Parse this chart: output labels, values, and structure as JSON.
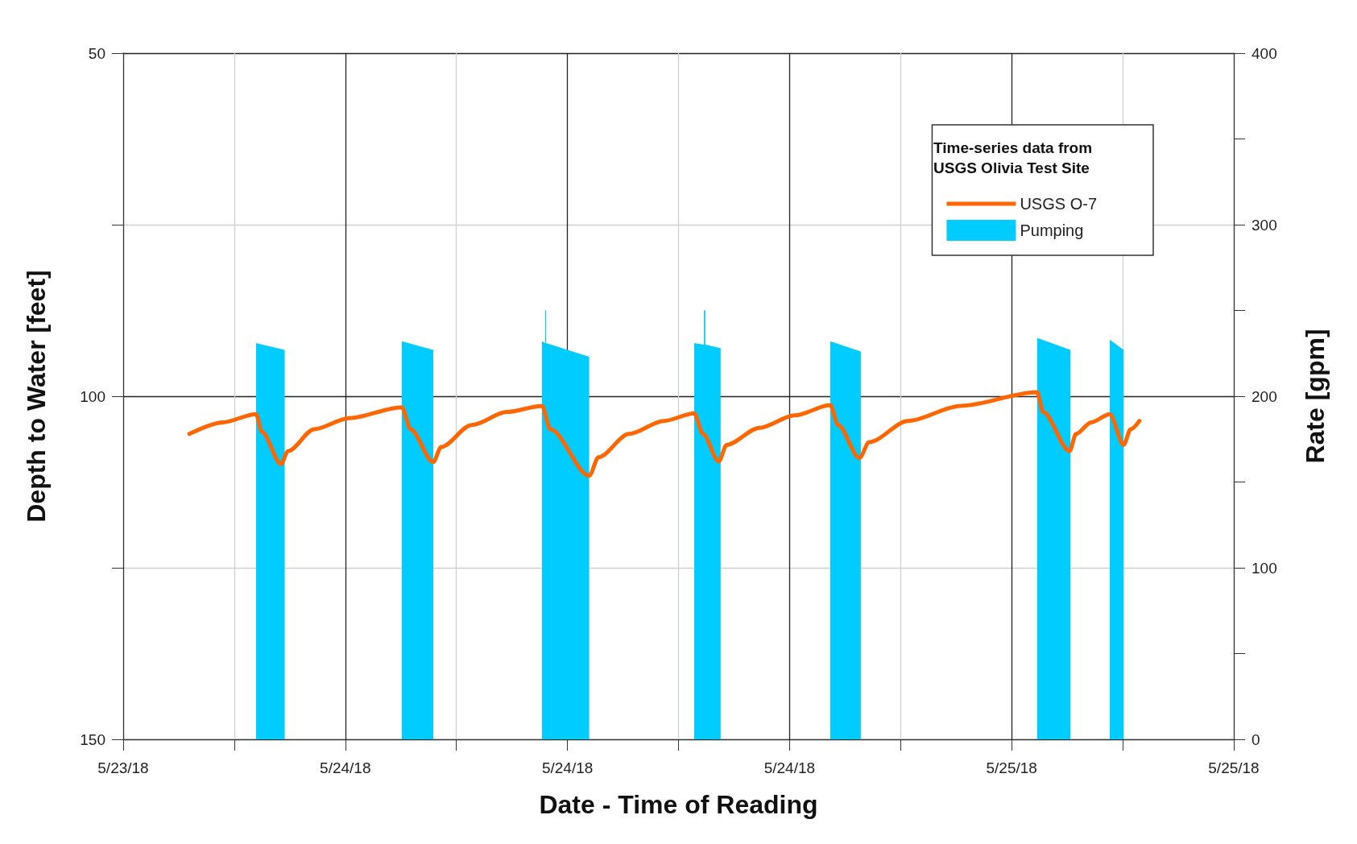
{
  "chart_data": {
    "type": "line",
    "xlabel": "Date - Time of Reading",
    "ylabel": "Depth to Water [feet]",
    "y2label": "Rate [gpm]",
    "legend_title": "Time-series data from USGS Olivia Test Site",
    "xlim": [
      "--05-23T16:00",
      "--05-25T08:00"
    ],
    "xticks": [
      {
        "value": "--05-23T16:00",
        "label": "5/23/18"
      },
      {
        "value": "--05-23T20:00",
        "label": null
      },
      {
        "value": "--05-24T00:00",
        "label": "5/24/18"
      },
      {
        "value": "--05-24T04:00",
        "label": null
      },
      {
        "value": "--05-24T08:00",
        "label": "5/24/18"
      },
      {
        "value": "--05-24T12:00",
        "label": null
      },
      {
        "value": "--05-24T16:00",
        "label": "5/24/18"
      },
      {
        "value": "--05-24T20:00",
        "label": null
      },
      {
        "value": "--05-25T00:00",
        "label": "5/25/18"
      },
      {
        "value": "--05-25T04:00",
        "label": null
      },
      {
        "value": "--05-25T08:00",
        "label": "5/25/18"
      }
    ],
    "ylim": [
      150,
      50
    ],
    "yticks": [
      50,
      {
        "value": 75,
        "label": null
      },
      100,
      {
        "value": 125,
        "label": null
      },
      150
    ],
    "y2lim": [
      0,
      400
    ],
    "y2ticks": [
      0,
      {
        "value": 50,
        "label": null
      },
      100,
      {
        "value": 150,
        "label": null
      },
      200,
      {
        "value": 250,
        "label": null
      },
      300,
      {
        "value": 350,
        "label": null
      },
      400
    ],
    "grid": true,
    "legend": "top right",
    "marker": "none",
    "line_style": "solid",
    "series": [
      {
        "name": "USGS O-7",
        "color": "#ff6600",
        "x": [
          "--05-23T18:23",
          "--05-23T19:35",
          "--05-23T20:47",
          "--05-23T21:00",
          "--05-23T21:41",
          "--05-23T21:56",
          "--05-23T22:53",
          "--05-24T00:08",
          "--05-24T02:02",
          "--05-24T02:21",
          "--05-24T03:10",
          "--05-24T03:27",
          "--05-24T04:33",
          "--05-24T05:49",
          "--05-24T07:05",
          "--05-24T07:23",
          "--05-24T08:47",
          "--05-24T09:07",
          "--05-24T10:13",
          "--05-24T11:28",
          "--05-24T12:34",
          "--05-24T12:53",
          "--05-24T13:27",
          "--05-24T13:44",
          "--05-24T14:55",
          "--05-24T16:11",
          "--05-24T17:28",
          "--05-24T17:45",
          "--05-24T18:31",
          "--05-24T18:52",
          "--05-24T20:16",
          "--05-24T22:10",
          "--05-25T00:55",
          "--05-25T01:08",
          "--05-25T02:05",
          "--05-25T02:19",
          "--05-25T02:52",
          "--05-25T03:32",
          "--05-25T04:02",
          "--05-25T04:17",
          "--05-25T04:36"
        ],
        "values": [
          105.5,
          103.8,
          102.6,
          105.2,
          109.9,
          108.0,
          104.8,
          103.2,
          101.6,
          104.8,
          109.6,
          107.4,
          104.2,
          102.3,
          101.4,
          104.8,
          111.6,
          108.9,
          105.5,
          103.6,
          102.5,
          105.5,
          109.5,
          107.1,
          104.6,
          102.8,
          101.3,
          104.2,
          109.0,
          106.7,
          103.6,
          101.4,
          99.4,
          102.3,
          108.0,
          105.5,
          103.8,
          102.6,
          107.1,
          104.8,
          103.6
        ]
      },
      {
        "name": "Pumping",
        "type": "area",
        "axis": "y2",
        "color": "#00ccff",
        "x": [
          "--05-23T20:47",
          "--05-23T20:47",
          "--05-23T21:49",
          "--05-23T21:49",
          "--05-24T02:02",
          "--05-24T02:02",
          "--05-24T03:10",
          "--05-24T03:10",
          "--05-24T07:05",
          "--05-24T07:05",
          "--05-24T07:12",
          "--05-24T07:12",
          "--05-24T07:14",
          "--05-24T07:14",
          "--05-24T08:47",
          "--05-24T08:47",
          "--05-24T12:34",
          "--05-24T12:34",
          "--05-24T12:55",
          "--05-24T12:55",
          "--05-24T12:58",
          "--05-24T12:58",
          "--05-24T13:31",
          "--05-24T13:31",
          "--05-24T17:28",
          "--05-24T17:28",
          "--05-24T18:34",
          "--05-24T18:34",
          "--05-25T00:55",
          "--05-25T00:55",
          "--05-25T02:07",
          "--05-25T02:07",
          "--05-25T03:32",
          "--05-25T03:32",
          "--05-25T04:02",
          "--05-25T04:02"
        ],
        "values": [
          0,
          231,
          227,
          0,
          0,
          232,
          227,
          0,
          0,
          232,
          231,
          250,
          250,
          231,
          223,
          0,
          0,
          231,
          230,
          250,
          250,
          230,
          228,
          0,
          0,
          232,
          226,
          0,
          0,
          234,
          227,
          0,
          0,
          233,
          227,
          0
        ]
      }
    ]
  }
}
